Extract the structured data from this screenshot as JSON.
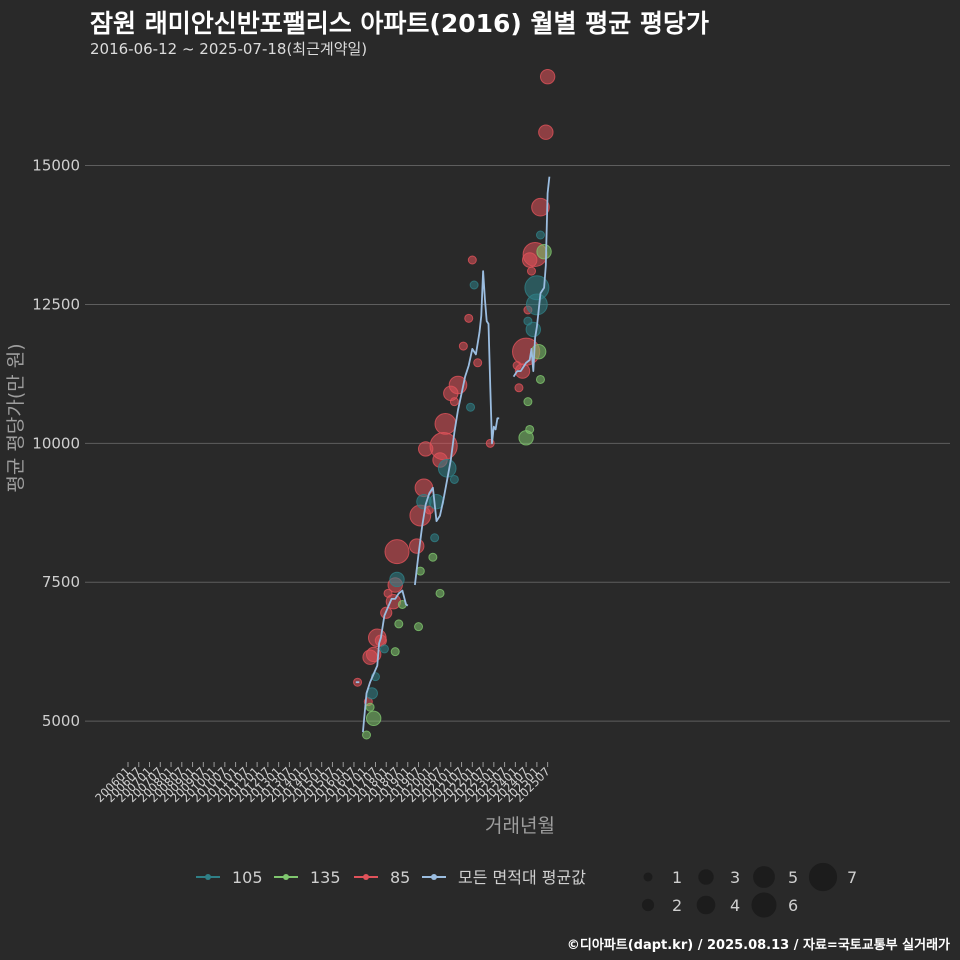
{
  "header": {
    "title": "잠원 래미안신반포팰리스 아파트(2016) 월별 평균 평당가",
    "subtitle": "2016-06-12 ~ 2025-07-18(최근계약일)"
  },
  "caption": "©디아파트(dapt.kr) / 2025.08.13 / 자료=국토교통부 실거래가",
  "colors": {
    "background": "#292929",
    "grid": "#5e5e5e",
    "text": "#cfcfcf",
    "series_105": "#2f7f86",
    "series_135": "#7fc66e",
    "series_85": "#e0525a",
    "series_avg": "#9bbde0"
  },
  "chart_data": {
    "type": "scatter",
    "xlabel": "거래년월",
    "ylabel": "평균 평당가(만 원)",
    "ylim": [
      4300,
      16900
    ],
    "yticks": [
      5000,
      7500,
      10000,
      12500,
      15000
    ],
    "grid": true,
    "xticks": [
      "200601",
      "200607",
      "200701",
      "200707",
      "200801",
      "200807",
      "200901",
      "200907",
      "201001",
      "201007",
      "201101",
      "201107",
      "201201",
      "201207",
      "201301",
      "201307",
      "201401",
      "201407",
      "201501",
      "201507",
      "201601",
      "201607",
      "201701",
      "201707",
      "201801",
      "201807",
      "201901",
      "201907",
      "202001",
      "202007",
      "202101",
      "202107",
      "202201",
      "202207",
      "202301",
      "202307",
      "202401",
      "202407",
      "202501",
      "202507"
    ],
    "legend": {
      "position": "bottom",
      "series": [
        {
          "name": "105",
          "color": "#2f7f86"
        },
        {
          "name": "135",
          "color": "#7fc66e"
        },
        {
          "name": "85",
          "color": "#e0525a"
        },
        {
          "name": "모든 면적대 평균값",
          "color": "#9bbde0"
        }
      ],
      "sizes": [
        1,
        2,
        3,
        4,
        5,
        6,
        7
      ]
    },
    "average_line": [
      [
        [
          "201608",
          5700
        ],
        [
          "201610",
          5700
        ]
      ],
      [
        [
          "201612",
          4800
        ],
        [
          "201702",
          5500
        ],
        [
          "201704",
          5700
        ],
        [
          "201706",
          5850
        ],
        [
          "201708",
          6000
        ],
        [
          "201709",
          6400
        ],
        [
          "201710",
          6500
        ],
        [
          "201712",
          6900
        ],
        [
          "201802",
          7050
        ],
        [
          "201804",
          7200
        ],
        [
          "201806",
          7200
        ],
        [
          "201808",
          7300
        ],
        [
          "201810",
          7350
        ],
        [
          "201812",
          7100
        ],
        [
          "201901",
          7080
        ]
      ],
      [
        [
          "201905",
          7450
        ],
        [
          "201907",
          8000
        ],
        [
          "201909",
          8500
        ],
        [
          "201911",
          8900
        ],
        [
          "202001",
          9100
        ],
        [
          "202003",
          9200
        ],
        [
          "202005",
          8600
        ],
        [
          "202007",
          8700
        ],
        [
          "202009",
          9000
        ],
        [
          "202011",
          9350
        ],
        [
          "202101",
          9700
        ],
        [
          "202103",
          10200
        ],
        [
          "202105",
          10600
        ],
        [
          "202107",
          10900
        ],
        [
          "202109",
          11200
        ],
        [
          "202111",
          11400
        ],
        [
          "202201",
          11700
        ],
        [
          "202203",
          11600
        ],
        [
          "202205",
          12000
        ],
        [
          "202206",
          12300
        ],
        [
          "202207",
          13100
        ],
        [
          "202208",
          12600
        ],
        [
          "202209",
          12200
        ],
        [
          "202210",
          12150
        ],
        [
          "202211",
          11000
        ],
        [
          "202212",
          10000
        ],
        [
          "202301",
          10300
        ],
        [
          "202302",
          10250
        ],
        [
          "202303",
          10450
        ],
        [
          "202304",
          10450
        ]
      ],
      [
        [
          "202312",
          11200
        ],
        [
          "202402",
          11300
        ],
        [
          "202404",
          11300
        ],
        [
          "202406",
          11400
        ],
        [
          "202407",
          11450
        ],
        [
          "202409",
          11500
        ],
        [
          "202410",
          11700
        ],
        [
          "202411",
          11300
        ],
        [
          "202412",
          11900
        ],
        [
          "202501",
          12100
        ],
        [
          "202503",
          12700
        ],
        [
          "202505",
          12800
        ],
        [
          "202506",
          13200
        ],
        [
          "202507",
          14500
        ],
        [
          "202508",
          14800
        ]
      ]
    ],
    "points": [
      {
        "series": "85",
        "x": "201609",
        "y": 5700,
        "n": 1
      },
      {
        "series": "135",
        "x": "201702",
        "y": 4750,
        "n": 1
      },
      {
        "series": "85",
        "x": "201703",
        "y": 5350,
        "n": 1
      },
      {
        "series": "85",
        "x": "201704",
        "y": 6150,
        "n": 3
      },
      {
        "series": "85",
        "x": "201706",
        "y": 6200,
        "n": 3
      },
      {
        "series": "105",
        "x": "201705",
        "y": 5500,
        "n": 2
      },
      {
        "series": "135",
        "x": "201706",
        "y": 5050,
        "n": 3
      },
      {
        "series": "135",
        "x": "201704",
        "y": 5250,
        "n": 1
      },
      {
        "series": "105",
        "x": "201707",
        "y": 5800,
        "n": 1
      },
      {
        "series": "85",
        "x": "201708",
        "y": 6500,
        "n": 4
      },
      {
        "series": "85",
        "x": "201710",
        "y": 6450,
        "n": 2
      },
      {
        "series": "105",
        "x": "201712",
        "y": 6300,
        "n": 1
      },
      {
        "series": "85",
        "x": "201801",
        "y": 6950,
        "n": 2
      },
      {
        "series": "85",
        "x": "201802",
        "y": 7300,
        "n": 1
      },
      {
        "series": "85",
        "x": "201805",
        "y": 7150,
        "n": 3
      },
      {
        "series": "85",
        "x": "201806",
        "y": 7450,
        "n": 3
      },
      {
        "series": "105",
        "x": "201807",
        "y": 7550,
        "n": 3
      },
      {
        "series": "85",
        "x": "201807",
        "y": 8050,
        "n": 6
      },
      {
        "series": "135",
        "x": "201806",
        "y": 6250,
        "n": 1
      },
      {
        "series": "135",
        "x": "201808",
        "y": 6750,
        "n": 1
      },
      {
        "series": "135",
        "x": "201810",
        "y": 7100,
        "n": 1
      },
      {
        "series": "135",
        "x": "201907",
        "y": 6700,
        "n": 1
      },
      {
        "series": "85",
        "x": "201906",
        "y": 8150,
        "n": 3
      },
      {
        "series": "135",
        "x": "201908",
        "y": 7700,
        "n": 1
      },
      {
        "series": "85",
        "x": "201908",
        "y": 8700,
        "n": 5
      },
      {
        "series": "85",
        "x": "201910",
        "y": 9200,
        "n": 4
      },
      {
        "series": "105",
        "x": "201910",
        "y": 8950,
        "n": 3
      },
      {
        "series": "85",
        "x": "201911",
        "y": 9900,
        "n": 3
      },
      {
        "series": "85",
        "x": "202001",
        "y": 8800,
        "n": 1
      },
      {
        "series": "135",
        "x": "202003",
        "y": 7950,
        "n": 1
      },
      {
        "series": "105",
        "x": "202004",
        "y": 8300,
        "n": 1
      },
      {
        "series": "105",
        "x": "202005",
        "y": 8950,
        "n": 3
      },
      {
        "series": "135",
        "x": "202007",
        "y": 7300,
        "n": 1
      },
      {
        "series": "85",
        "x": "202007",
        "y": 9700,
        "n": 3
      },
      {
        "series": "85",
        "x": "202009",
        "y": 9950,
        "n": 7
      },
      {
        "series": "85",
        "x": "202010",
        "y": 10350,
        "n": 5
      },
      {
        "series": "105",
        "x": "202011",
        "y": 9550,
        "n": 4
      },
      {
        "series": "85",
        "x": "202101",
        "y": 10900,
        "n": 3
      },
      {
        "series": "105",
        "x": "202103",
        "y": 9350,
        "n": 1
      },
      {
        "series": "85",
        "x": "202103",
        "y": 10750,
        "n": 1
      },
      {
        "series": "85",
        "x": "202105",
        "y": 11050,
        "n": 4
      },
      {
        "series": "85",
        "x": "202108",
        "y": 11750,
        "n": 1
      },
      {
        "series": "105",
        "x": "202112",
        "y": 10650,
        "n": 1
      },
      {
        "series": "85",
        "x": "202111",
        "y": 12250,
        "n": 1
      },
      {
        "series": "85",
        "x": "202201",
        "y": 13300,
        "n": 1
      },
      {
        "series": "105",
        "x": "202202",
        "y": 12850,
        "n": 1
      },
      {
        "series": "85",
        "x": "202204",
        "y": 11450,
        "n": 1
      },
      {
        "series": "85",
        "x": "202211",
        "y": 10000,
        "n": 1
      },
      {
        "series": "85",
        "x": "202402",
        "y": 11400,
        "n": 1
      },
      {
        "series": "85",
        "x": "202403",
        "y": 11000,
        "n": 1
      },
      {
        "series": "85",
        "x": "202405",
        "y": 11300,
        "n": 3
      },
      {
        "series": "85",
        "x": "202407",
        "y": 11650,
        "n": 7
      },
      {
        "series": "135",
        "x": "202407",
        "y": 10100,
        "n": 3
      },
      {
        "series": "135",
        "x": "202408",
        "y": 10750,
        "n": 1
      },
      {
        "series": "135",
        "x": "202409",
        "y": 10250,
        "n": 1
      },
      {
        "series": "85",
        "x": "202408",
        "y": 12400,
        "n": 1
      },
      {
        "series": "105",
        "x": "202408",
        "y": 12200,
        "n": 1
      },
      {
        "series": "85",
        "x": "202409",
        "y": 13300,
        "n": 3
      },
      {
        "series": "85",
        "x": "202410",
        "y": 13100,
        "n": 1
      },
      {
        "series": "105",
        "x": "202411",
        "y": 12050,
        "n": 3
      },
      {
        "series": "85",
        "x": "202412",
        "y": 13400,
        "n": 6
      },
      {
        "series": "105",
        "x": "202501",
        "y": 12800,
        "n": 6
      },
      {
        "series": "105",
        "x": "202501",
        "y": 12500,
        "n": 5
      },
      {
        "series": "135",
        "x": "202502",
        "y": 11650,
        "n": 3
      },
      {
        "series": "135",
        "x": "202503",
        "y": 11150,
        "n": 1
      },
      {
        "series": "85",
        "x": "202503",
        "y": 14250,
        "n": 4
      },
      {
        "series": "105",
        "x": "202503",
        "y": 13750,
        "n": 1
      },
      {
        "series": "135",
        "x": "202505",
        "y": 13450,
        "n": 3
      },
      {
        "series": "85",
        "x": "202506",
        "y": 15600,
        "n": 3
      },
      {
        "series": "85",
        "x": "202507",
        "y": 16600,
        "n": 3
      }
    ]
  }
}
